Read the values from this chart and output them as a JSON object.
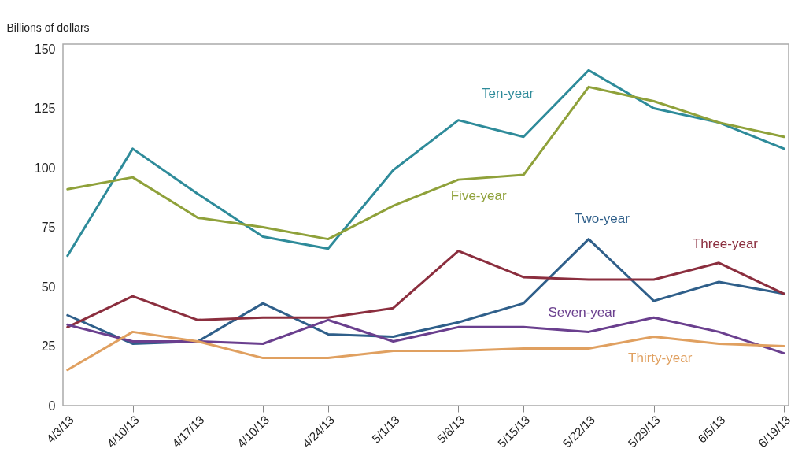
{
  "chart_data": {
    "type": "line",
    "ylabel": "Billions of dollars",
    "categories": [
      "4/3/13",
      "4/10/13",
      "4/17/13",
      "4/10/13",
      "4/24/13",
      "5/1/13",
      "5/8/13",
      "5/15/13",
      "5/22/13",
      "5/29/13",
      "6/5/13",
      "6/19/13"
    ],
    "series": [
      {
        "name": "Ten-year",
        "color": "#2e8b9a",
        "values": [
          63,
          108,
          89,
          71,
          66,
          99,
          120,
          113,
          141,
          125,
          119,
          108
        ]
      },
      {
        "name": "Five-year",
        "color": "#8fa13a",
        "values": [
          91,
          96,
          79,
          75,
          70,
          84,
          95,
          97,
          134,
          128,
          119,
          113
        ]
      },
      {
        "name": "Two-year",
        "color": "#2f5f8a",
        "values": [
          38,
          26,
          27,
          43,
          30,
          29,
          35,
          43,
          70,
          44,
          52,
          47
        ]
      },
      {
        "name": "Three-year",
        "color": "#8b2e3e",
        "values": [
          33,
          46,
          36,
          37,
          37,
          41,
          65,
          54,
          53,
          53,
          60,
          47
        ]
      },
      {
        "name": "Seven-year",
        "color": "#6a3f8e",
        "values": [
          34,
          27,
          27,
          26,
          36,
          27,
          33,
          33,
          31,
          37,
          31,
          22
        ]
      },
      {
        "name": "Thirty-year",
        "color": "#e0a060",
        "values": [
          15,
          31,
          27,
          20,
          20,
          23,
          23,
          24,
          24,
          29,
          26,
          25
        ]
      }
    ],
    "ylim": [
      0,
      152
    ],
    "yticks": [
      0,
      25,
      50,
      75,
      100,
      125,
      150
    ],
    "grid": false,
    "legend": false
  }
}
